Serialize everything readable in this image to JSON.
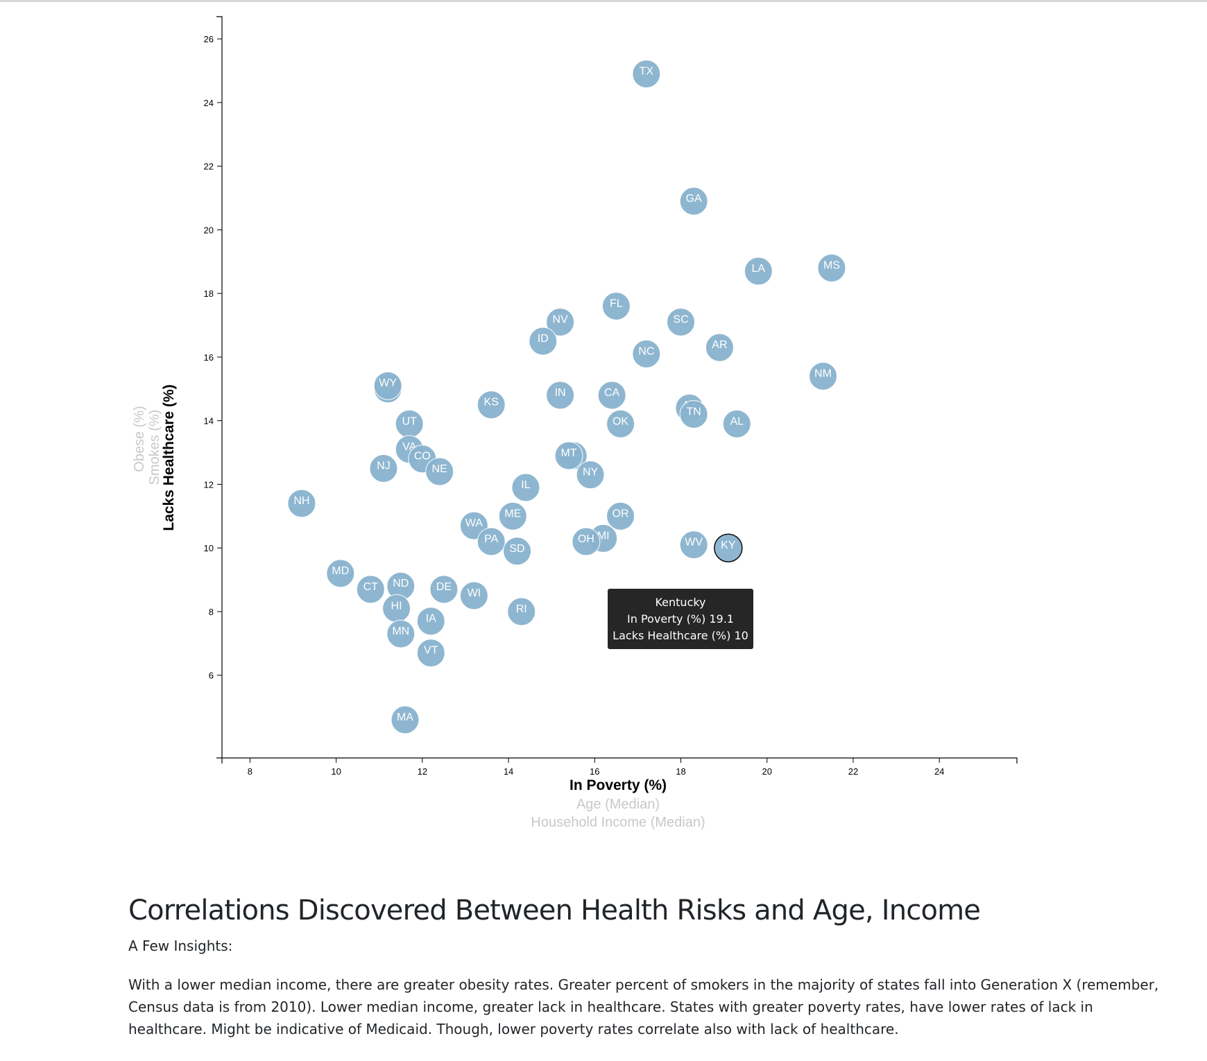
{
  "chart_data": {
    "type": "scatter",
    "xlabel": "In Poverty (%)",
    "ylabel": "Lacks Healthcare (%)",
    "x_axis_options": [
      "In Poverty (%)",
      "Age (Median)",
      "Household Income (Median)"
    ],
    "y_axis_options": [
      "Lacks Healthcare (%)",
      "Smokes (%)",
      "Obese (%)"
    ],
    "active_x": "In Poverty (%)",
    "active_y": "Lacks Healthcare (%)",
    "xlim": [
      7.35,
      25.8
    ],
    "ylim": [
      3.4,
      26.7
    ],
    "x_ticks": [
      8,
      10,
      12,
      14,
      16,
      18,
      20,
      22,
      24
    ],
    "y_ticks": [
      6,
      8,
      10,
      12,
      14,
      16,
      18,
      20,
      22,
      24,
      26
    ],
    "marker_color": "#89b3ce",
    "points": [
      {
        "abbr": "TX",
        "x": 17.2,
        "y": 24.9
      },
      {
        "abbr": "GA",
        "x": 18.3,
        "y": 20.9
      },
      {
        "abbr": "LA",
        "x": 19.8,
        "y": 18.7
      },
      {
        "abbr": "MS",
        "x": 21.5,
        "y": 18.8
      },
      {
        "abbr": "FL",
        "x": 16.5,
        "y": 17.6
      },
      {
        "abbr": "NV",
        "x": 15.2,
        "y": 17.1
      },
      {
        "abbr": "SC",
        "x": 18.0,
        "y": 17.1
      },
      {
        "abbr": "ID",
        "x": 14.8,
        "y": 16.5
      },
      {
        "abbr": "AR",
        "x": 18.9,
        "y": 16.3
      },
      {
        "abbr": "NC",
        "x": 17.2,
        "y": 16.1
      },
      {
        "abbr": "NM",
        "x": 21.3,
        "y": 15.4
      },
      {
        "abbr": "AK",
        "x": 11.2,
        "y": 15.0
      },
      {
        "abbr": "WY",
        "x": 11.2,
        "y": 15.1
      },
      {
        "abbr": "KS",
        "x": 13.6,
        "y": 14.5
      },
      {
        "abbr": "IN",
        "x": 15.2,
        "y": 14.8
      },
      {
        "abbr": "CA",
        "x": 16.4,
        "y": 14.8
      },
      {
        "abbr": "AZ",
        "x": 18.2,
        "y": 14.4
      },
      {
        "abbr": "TN",
        "x": 18.3,
        "y": 14.2
      },
      {
        "abbr": "AL",
        "x": 19.3,
        "y": 13.9
      },
      {
        "abbr": "UT",
        "x": 11.7,
        "y": 13.9
      },
      {
        "abbr": "OK",
        "x": 16.6,
        "y": 13.9
      },
      {
        "abbr": "VA",
        "x": 11.7,
        "y": 13.1
      },
      {
        "abbr": "CO",
        "x": 12.0,
        "y": 12.8
      },
      {
        "abbr": "NJ",
        "x": 11.1,
        "y": 12.5
      },
      {
        "abbr": "NE",
        "x": 12.4,
        "y": 12.4
      },
      {
        "abbr": "MO",
        "x": 15.5,
        "y": 12.9
      },
      {
        "abbr": "MT",
        "x": 15.4,
        "y": 12.9
      },
      {
        "abbr": "NY",
        "x": 15.9,
        "y": 12.3
      },
      {
        "abbr": "IL",
        "x": 14.4,
        "y": 11.9
      },
      {
        "abbr": "NH",
        "x": 9.2,
        "y": 11.4
      },
      {
        "abbr": "ME",
        "x": 14.1,
        "y": 11.0
      },
      {
        "abbr": "OR",
        "x": 16.6,
        "y": 11.0
      },
      {
        "abbr": "WA",
        "x": 13.2,
        "y": 10.7
      },
      {
        "abbr": "PA",
        "x": 13.6,
        "y": 10.2
      },
      {
        "abbr": "SD",
        "x": 14.2,
        "y": 9.9
      },
      {
        "abbr": "MI",
        "x": 16.2,
        "y": 10.3
      },
      {
        "abbr": "OH",
        "x": 15.8,
        "y": 10.2
      },
      {
        "abbr": "WV",
        "x": 18.3,
        "y": 10.1
      },
      {
        "abbr": "KY",
        "x": 19.1,
        "y": 10.0
      },
      {
        "abbr": "MD",
        "x": 10.1,
        "y": 9.2
      },
      {
        "abbr": "CT",
        "x": 10.8,
        "y": 8.7
      },
      {
        "abbr": "ND",
        "x": 11.5,
        "y": 8.8
      },
      {
        "abbr": "DE",
        "x": 12.5,
        "y": 8.7
      },
      {
        "abbr": "WI",
        "x": 13.2,
        "y": 8.5
      },
      {
        "abbr": "HI",
        "x": 11.4,
        "y": 8.1
      },
      {
        "abbr": "RI",
        "x": 14.3,
        "y": 8.0
      },
      {
        "abbr": "IA",
        "x": 12.2,
        "y": 7.7
      },
      {
        "abbr": "MN",
        "x": 11.5,
        "y": 7.3
      },
      {
        "abbr": "VT",
        "x": 12.2,
        "y": 6.7
      },
      {
        "abbr": "MA",
        "x": 11.6,
        "y": 4.6
      }
    ],
    "highlighted": "KY",
    "tooltip": {
      "state": "Kentucky",
      "line_poverty": "In Poverty (%) 19.1",
      "line_healthcare": "Lacks Healthcare (%) 10"
    }
  },
  "insights": {
    "title": "Correlations Discovered Between Health Risks and Age, Income",
    "subtitle": "A Few Insights:",
    "body": "With a lower median income, there are greater obesity rates. Greater percent of smokers in the majority of states fall into Generation X (remember, Census data is from 2010). Lower median income, greater lack in healthcare. States with greater poverty rates, have lower rates of lack in healthcare. Might be indicative of Medicaid. Though, lower poverty rates correlate also with lack of healthcare."
  }
}
